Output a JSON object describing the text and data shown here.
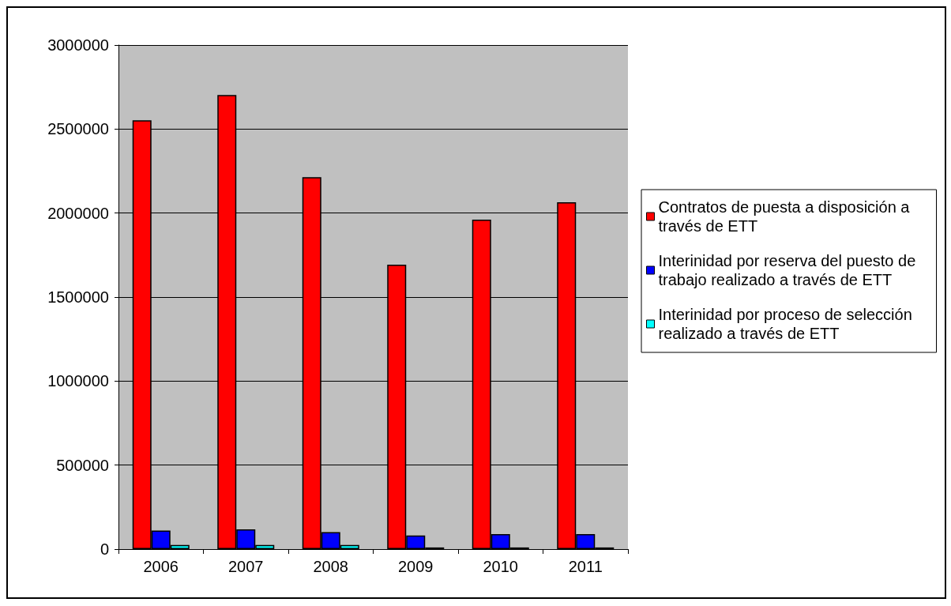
{
  "chart_data": {
    "type": "bar",
    "categories": [
      "2006",
      "2007",
      "2008",
      "2009",
      "2010",
      "2011"
    ],
    "series": [
      {
        "name": "Contratos de puesta a disposición a través de ETT",
        "color": "#ff0000",
        "values": [
          2552000,
          2703000,
          2213000,
          1693000,
          1961000,
          2064000
        ]
      },
      {
        "name": "Interinidad por reserva del puesto de trabajo realizado a través de ETT",
        "color": "#0000ff",
        "values": [
          110000,
          118000,
          101000,
          81000,
          89000,
          89000
        ]
      },
      {
        "name": "Interinidad por proceso de selección realizado a través de ETT",
        "color": "#00ffff",
        "values": [
          25000,
          25000,
          25000,
          10000,
          10000,
          10000
        ]
      }
    ],
    "ylim": [
      0,
      3000000
    ],
    "yticks": [
      0,
      500000,
      1000000,
      1500000,
      2000000,
      2500000,
      3000000
    ],
    "grid": "y",
    "legend": "right"
  }
}
